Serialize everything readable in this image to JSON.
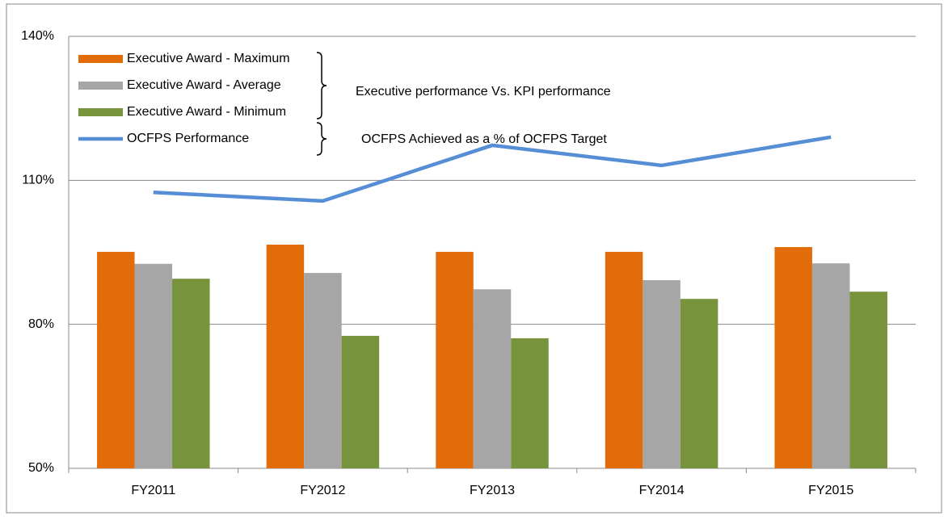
{
  "chart_data": {
    "type": "bar",
    "categories": [
      "FY2011",
      "FY2012",
      "FY2013",
      "FY2014",
      "FY2015"
    ],
    "series": [
      {
        "name": "Executive Award - Maximum",
        "color": "#e36c0a",
        "values": [
          95.1,
          96.6,
          95.1,
          95.1,
          96.1
        ]
      },
      {
        "name": "Executive Award - Average",
        "color": "#a6a6a6",
        "values": [
          92.6,
          90.7,
          87.3,
          89.2,
          92.7
        ]
      },
      {
        "name": "Executive Award - Minimum",
        "color": "#77933c",
        "values": [
          89.5,
          77.6,
          77.1,
          85.3,
          86.8
        ]
      },
      {
        "name": "OCFPS Performance",
        "color": "#558ed5",
        "type": "line",
        "values": [
          107.5,
          105.7,
          117.3,
          113.1,
          119.0
        ]
      }
    ],
    "annotations": [
      "Executive performance  Vs. KPI performance",
      "OCFPS Achieved  as a % of OCFPS Target"
    ],
    "ylim": [
      50,
      140
    ],
    "yticks": [
      {
        "value": 50,
        "label": "50%"
      },
      {
        "value": 80,
        "label": "80%"
      },
      {
        "value": 110,
        "label": "110%"
      },
      {
        "value": 140,
        "label": "140%"
      }
    ],
    "grid": true,
    "legend": "top-left"
  }
}
